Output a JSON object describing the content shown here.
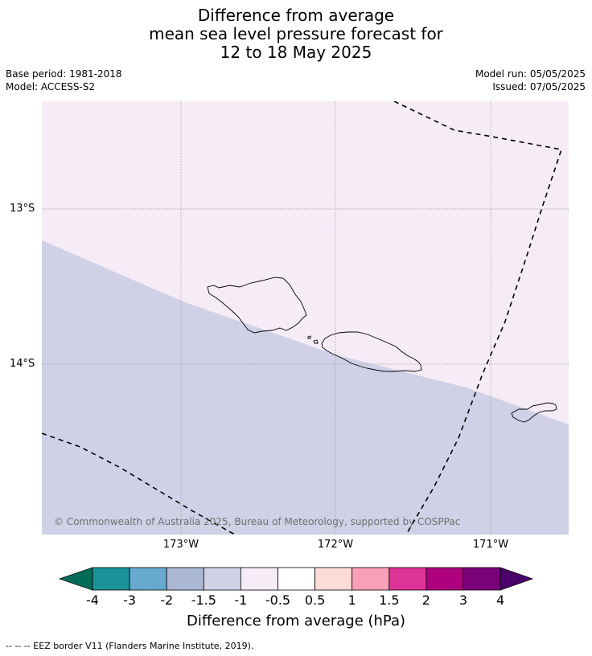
{
  "title": {
    "line1": "Difference from average",
    "line2": "mean sea level pressure forecast for",
    "line3": "12 to 18 May 2025"
  },
  "meta": {
    "base_period": "Base period: 1981-2018",
    "model": "Model: ACCESS-S2",
    "model_run": "Model run: 05/05/2025",
    "issued": "Issued: 07/05/2025"
  },
  "map": {
    "latitudes": [
      "13°S",
      "14°S"
    ],
    "longitudes": [
      "173°W",
      "172°W",
      "171°W"
    ],
    "copyright": "© Commonwealth of Australia 2025, Bureau of Meteorology, supported by COSPPac",
    "colors": {
      "upper_region": "#f5ecf5",
      "lower_region": "#d0d1e6",
      "grid": "#999999"
    }
  },
  "colorbar": {
    "labels": [
      "-4",
      "-3",
      "-2",
      "-1.5",
      "-1",
      "-0.5",
      "0.5",
      "1",
      "1.5",
      "2",
      "3",
      "4"
    ],
    "colors": [
      "#1b9297",
      "#67a9cf",
      "#abb8d5",
      "#d0d1e6",
      "#f5ecf5",
      "#ffffff",
      "#fddbd9",
      "#f9a0b8",
      "#dd3497",
      "#ae017e",
      "#7a0177"
    ],
    "under_color": "#016c59",
    "over_color": "#49006a",
    "title": "Difference from average (hPa)"
  },
  "footnote": "--  --  -- EEZ border V11 (Flanders Marine Institute, 2019)."
}
